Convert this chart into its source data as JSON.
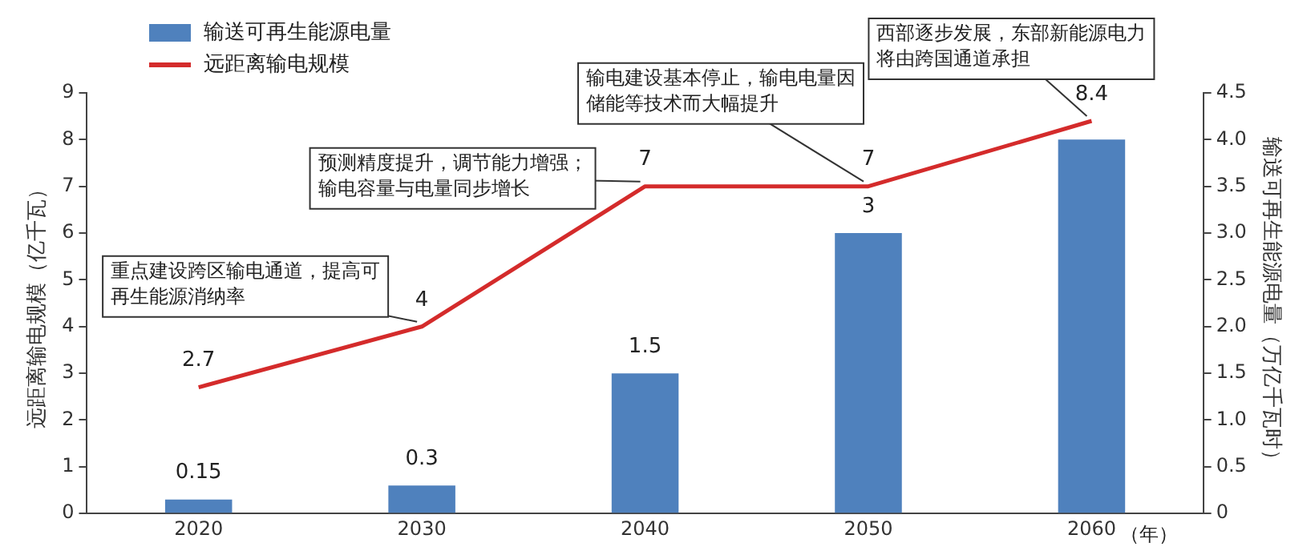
{
  "chart_data": {
    "type": "bar",
    "categories": [
      "2020",
      "2030",
      "2040",
      "2050",
      "2060"
    ],
    "xlabel": "（年）",
    "ylabel": "远距离输电规模（亿千瓦）",
    "y2label": "输送可再生能源电量（万亿千瓦时）",
    "series": [
      {
        "name": "输送可再生能源电量",
        "type": "bar",
        "axis": "y2",
        "color": "#4f81bd",
        "values": [
          0.15,
          0.3,
          1.5,
          3,
          4.0
        ],
        "value_labels": [
          "0.15",
          "0.3",
          "1.5",
          "3",
          null
        ]
      },
      {
        "name": "远距离输电规模",
        "type": "line",
        "color": "#d42b2b",
        "values": [
          2.7,
          4,
          7,
          7,
          8.4
        ],
        "value_labels": [
          "2.7",
          "4",
          "7",
          "7",
          "8.4"
        ]
      }
    ],
    "ylim": [
      0,
      9
    ],
    "yticks": [
      0,
      1,
      2,
      3,
      4,
      5,
      6,
      7,
      8,
      9
    ],
    "y2lim": [
      0,
      4.5
    ],
    "y2ticks": [
      0,
      {
        "value": 0.5,
        "label": "0.5"
      },
      {
        "value": 1,
        "label": "1.0"
      },
      {
        "value": 1.5,
        "label": "1.5"
      },
      {
        "value": 2,
        "label": "2.0"
      },
      {
        "value": 2.5,
        "label": "2.5"
      },
      {
        "value": 3,
        "label": "3.0"
      },
      {
        "value": 3.5,
        "label": "3.5"
      },
      {
        "value": 4,
        "label": "4.0"
      },
      {
        "value": 4.5,
        "label": "4.5"
      }
    ],
    "annotations": [
      {
        "text": "重点建设跨区输电通道，提高可再生能源消纳率",
        "x": "2030",
        "y": 4
      },
      {
        "text": "预测精度提升，调节能力增强；输电容量与电量同步增长",
        "x": "2040",
        "y": 7
      },
      {
        "text": "输电建设基本停止，输电电量因储能等技术而大幅提升",
        "x": "2050",
        "y": 7
      },
      {
        "text": "西部逐步发展，东部新能源电力将由跨国通道承担",
        "x": "2060",
        "y": 8.4
      }
    ],
    "grid": false,
    "legend": "top left",
    "marker": "none",
    "line_style": "solid"
  }
}
